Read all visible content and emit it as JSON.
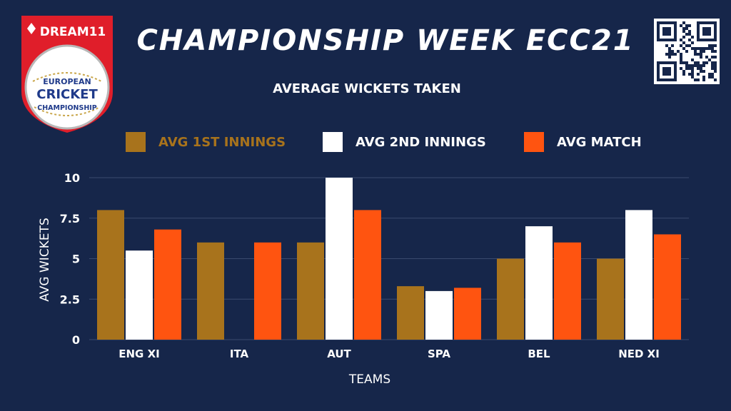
{
  "header": {
    "title": "CHAMPIONSHIP WEEK ECC21",
    "logo_brand": "DREAM11",
    "logo_lines": [
      "EUROPEAN",
      "CRICKET",
      "CHAMPIONSHIP"
    ]
  },
  "colors": {
    "background": "#16264a",
    "series1": "#a8731c",
    "series2": "#ffffff",
    "series3": "#ff5410",
    "logo_red": "#e01e2a"
  },
  "chart_data": {
    "type": "bar",
    "title": "AVERAGE WICKETS TAKEN",
    "xlabel": "TEAMS",
    "ylabel": "AVG WICKETS",
    "categories": [
      "ENG XI",
      "ITA",
      "AUT",
      "SPA",
      "BEL",
      "NED XI"
    ],
    "series": [
      {
        "name": "AVG 1ST INNINGS",
        "values": [
          8,
          6,
          6,
          3.3,
          5,
          5
        ]
      },
      {
        "name": "AVG 2ND INNINGS",
        "values": [
          5.5,
          0,
          10,
          3,
          7,
          8
        ]
      },
      {
        "name": "AVG MATCH",
        "values": [
          6.8,
          6,
          8,
          3.2,
          6,
          6.5
        ]
      }
    ],
    "yticks": [
      "0",
      "2.5",
      "5",
      "7.5",
      "10"
    ],
    "ytick_values": [
      0,
      2.5,
      5,
      7.5,
      10
    ],
    "ylim": [
      0,
      10
    ],
    "grid": true,
    "legend": "top"
  }
}
